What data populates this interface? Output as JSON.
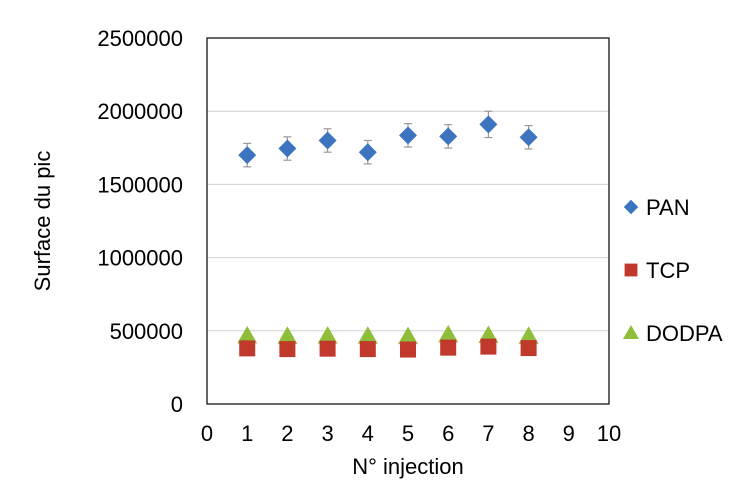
{
  "chart_data": {
    "type": "scatter",
    "title": "",
    "xlabel": "N° injection",
    "ylabel": "Surface du pic",
    "xlim": [
      0,
      10
    ],
    "ylim": [
      0,
      2500000
    ],
    "xticks": [
      "0",
      "1",
      "2",
      "3",
      "4",
      "5",
      "6",
      "7",
      "8",
      "9",
      "10"
    ],
    "yticks": [
      "0",
      "500000",
      "1000000",
      "1500000",
      "2000000",
      "2500000"
    ],
    "grid": "horizontal",
    "legend_position": "right",
    "series": [
      {
        "name": "PAN",
        "marker": "diamond",
        "color": "#3c74bf",
        "x": [
          1,
          2,
          3,
          4,
          5,
          6,
          7,
          8
        ],
        "y": [
          1700000,
          1745000,
          1800000,
          1720000,
          1835000,
          1828000,
          1910000,
          1822000
        ],
        "error": [
          80000,
          80000,
          80000,
          80000,
          80000,
          80000,
          90000,
          80000
        ]
      },
      {
        "name": "TCP",
        "marker": "square",
        "color": "#c0392b",
        "x": [
          1,
          2,
          3,
          4,
          5,
          6,
          7,
          8
        ],
        "y": [
          380000,
          375000,
          378000,
          375000,
          372000,
          385000,
          392000,
          382000
        ],
        "error": [
          0,
          0,
          0,
          0,
          0,
          0,
          0,
          0
        ]
      },
      {
        "name": "DODPA",
        "marker": "triangle",
        "color": "#8fbf3a",
        "x": [
          1,
          2,
          3,
          4,
          5,
          6,
          7,
          8
        ],
        "y": [
          465000,
          462000,
          464000,
          463000,
          460000,
          472000,
          468000,
          462000
        ],
        "error": [
          0,
          0,
          0,
          0,
          0,
          0,
          0,
          0
        ]
      }
    ]
  }
}
